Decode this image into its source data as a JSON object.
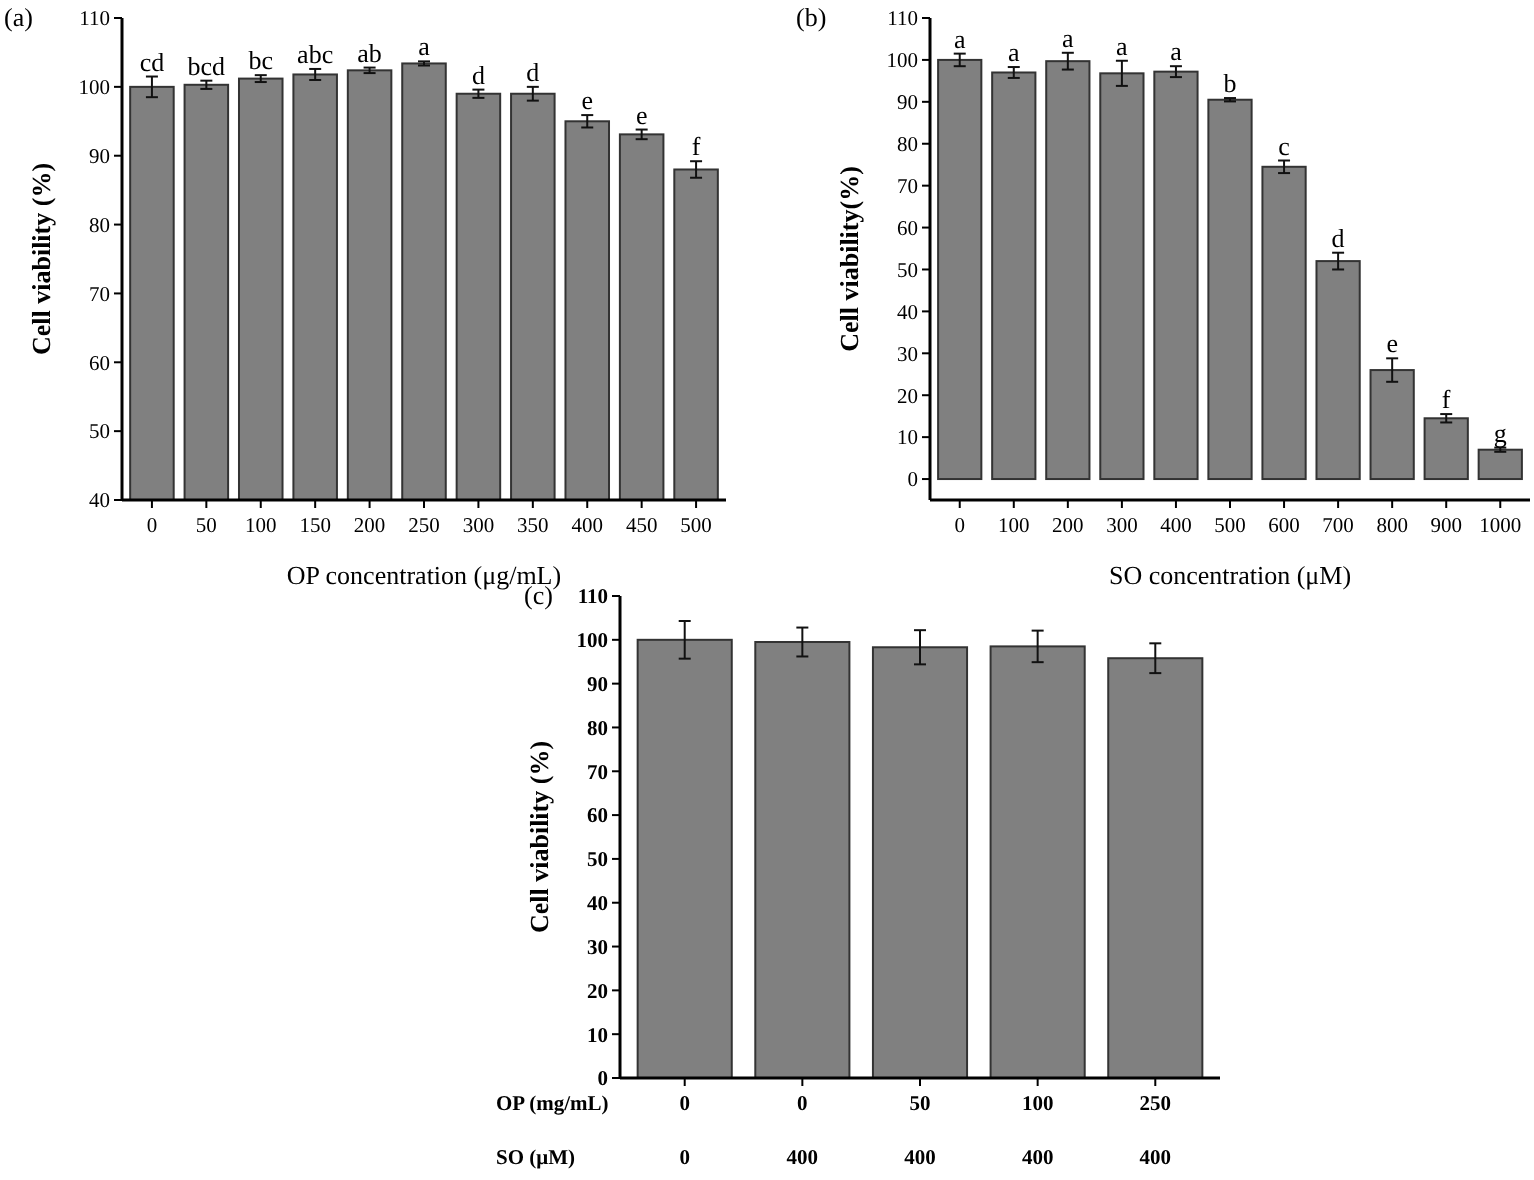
{
  "chart_data": [
    {
      "type": "bar",
      "title": "(a)",
      "xlabel": "OP concentration (μg/mL)",
      "ylabel": "Cell viability (%)",
      "categories": [
        "0",
        "50",
        "100",
        "150",
        "200",
        "250",
        "300",
        "350",
        "400",
        "450",
        "500"
      ],
      "color": "#808080",
      "values": [
        100,
        100.3,
        101.2,
        101.8,
        102.4,
        103.4,
        99.0,
        99.0,
        95.0,
        93.1,
        88.0
      ],
      "errors": [
        1.5,
        0.6,
        0.5,
        0.8,
        0.4,
        0.3,
        0.6,
        1.0,
        0.9,
        0.7,
        1.2
      ],
      "ylim": [
        40,
        110
      ],
      "yticks": [
        40,
        50,
        60,
        70,
        80,
        90,
        100,
        110
      ],
      "annotations": [
        {
          "text": "cd",
          "x": "0",
          "y": 101.5
        },
        {
          "text": "bcd",
          "x": "50",
          "y": 100.9
        },
        {
          "text": "bc",
          "x": "100",
          "y": 101.7
        },
        {
          "text": "abc",
          "x": "150",
          "y": 102.6
        },
        {
          "text": "ab",
          "x": "200",
          "y": 102.8
        },
        {
          "text": "a",
          "x": "250",
          "y": 103.7
        },
        {
          "text": "d",
          "x": "300",
          "y": 99.6
        },
        {
          "text": "d",
          "x": "350",
          "y": 100.0
        },
        {
          "text": "e",
          "x": "400",
          "y": 95.9
        },
        {
          "text": "e",
          "x": "450",
          "y": 93.8
        },
        {
          "text": "f",
          "x": "500",
          "y": 89.2
        }
      ]
    },
    {
      "type": "bar",
      "title": "(b)",
      "xlabel": "SO concentration (μM)",
      "ylabel": "Cell viability(%)",
      "categories": [
        "0",
        "100",
        "200",
        "300",
        "400",
        "500",
        "600",
        "700",
        "800",
        "900",
        "1000"
      ],
      "color": "#808080",
      "values": [
        100,
        97,
        99.7,
        96.8,
        97.2,
        90.5,
        74.5,
        52,
        26,
        14.5,
        7
      ],
      "errors": [
        1.5,
        1.3,
        2,
        3,
        1.3,
        0.4,
        1.5,
        2,
        2.8,
        1,
        0.5
      ],
      "ylim": [
        -5,
        110
      ],
      "yticks": [
        0,
        10,
        20,
        30,
        40,
        50,
        60,
        70,
        80,
        90,
        100,
        110
      ],
      "annotations": [
        {
          "text": "a",
          "x": "0",
          "y": 101.5
        },
        {
          "text": "a",
          "x": "100",
          "y": 98.3
        },
        {
          "text": "a",
          "x": "200",
          "y": 101.7
        },
        {
          "text": "a",
          "x": "300",
          "y": 99.8
        },
        {
          "text": "a",
          "x": "400",
          "y": 98.5
        },
        {
          "text": "b",
          "x": "500",
          "y": 90.9
        },
        {
          "text": "c",
          "x": "600",
          "y": 76
        },
        {
          "text": "d",
          "x": "700",
          "y": 54
        },
        {
          "text": "e",
          "x": "800",
          "y": 28.8
        },
        {
          "text": "f",
          "x": "900",
          "y": 15.5
        },
        {
          "text": "g",
          "x": "1000",
          "y": 7.5
        }
      ]
    },
    {
      "type": "bar",
      "title": "(c)",
      "xlabel": "OP (mg/mL)\nSO (μM)",
      "ylabel": "Cell viability (%)",
      "categories": [
        "0\n0",
        "0\n400",
        "50\n400",
        "100\n400",
        "250\n400"
      ],
      "color": "#808080",
      "values": [
        100,
        99.5,
        98.3,
        98.5,
        95.8
      ],
      "errors": [
        4.3,
        3.3,
        3.9,
        3.6,
        3.4
      ],
      "ylim": [
        0,
        110
      ],
      "yticks": [
        0,
        10,
        20,
        30,
        40,
        50,
        60,
        70,
        80,
        90,
        100,
        110
      ]
    }
  ]
}
